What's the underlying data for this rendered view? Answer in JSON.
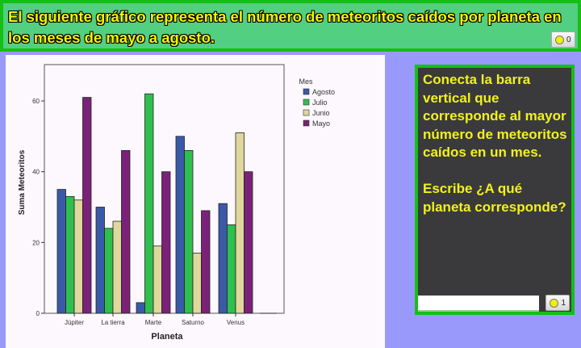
{
  "header": {
    "title": "El siguiente gráfico representa el número de meteoritos caídos por planeta en los meses de mayo a agosto.",
    "score": "0"
  },
  "question": {
    "text": "Conecta la barra vertical que corresponde al mayor número de meteoritos caídos en un mes.\n\nEscribe ¿A qué planeta corresponde?",
    "answer_value": "",
    "answer_placeholder": "",
    "score": "1"
  },
  "colors": {
    "header_bg": "#52cf80",
    "border": "#13c013",
    "background": "#9999fb",
    "question_bg": "#3a3a3d",
    "question_text": "#f2f21c"
  },
  "chart_data": {
    "type": "bar",
    "xlabel": "Planeta",
    "ylabel": "Suma Meteoritos",
    "categories": [
      "Júpiter",
      "La tierra",
      "Marte",
      "Saturno",
      "Venus"
    ],
    "ylim": [
      0,
      70
    ],
    "yticks": [
      0,
      20,
      40,
      60
    ],
    "grid": false,
    "legend_title": "Mes",
    "legend_position": "right",
    "series": [
      {
        "name": "Agosto",
        "color": "#3a5aa8",
        "values": [
          35,
          30,
          3,
          50,
          31
        ]
      },
      {
        "name": "Julio",
        "color": "#2fbf4f",
        "values": [
          33,
          24,
          62,
          46,
          25
        ]
      },
      {
        "name": "Junio",
        "color": "#e0d79c",
        "values": [
          32,
          26,
          19,
          17,
          51
        ]
      },
      {
        "name": "Mayo",
        "color": "#7a2278",
        "values": [
          61,
          46,
          40,
          29,
          40
        ]
      }
    ]
  }
}
